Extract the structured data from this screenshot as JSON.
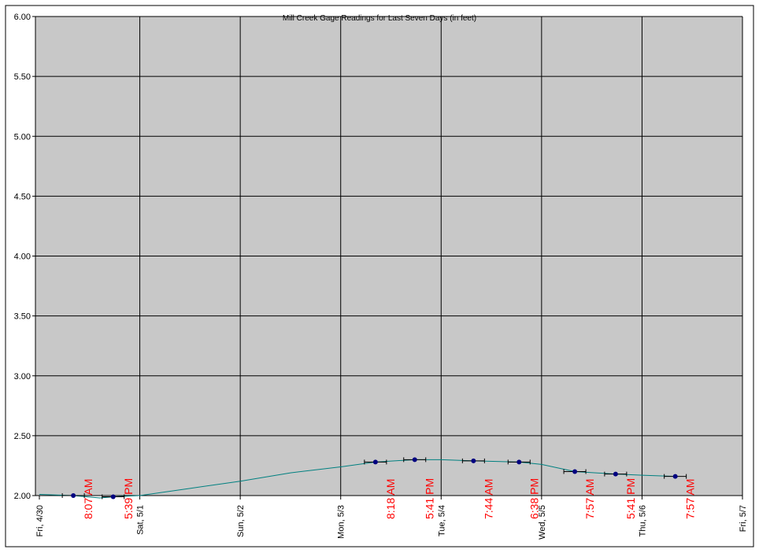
{
  "chart_data": {
    "type": "line",
    "title": "Mill Creek Gage Readings for Last Seven Days (in feet)",
    "xlim": [
      0,
      7
    ],
    "xticks": [
      {
        "value": 0,
        "label": "Fri, 4/30"
      },
      {
        "value": 1,
        "label": "Sat, 5/1"
      },
      {
        "value": 2,
        "label": "Sun, 5/2"
      },
      {
        "value": 3,
        "label": "Mon, 5/3"
      },
      {
        "value": 4,
        "label": "Tue, 5/4"
      },
      {
        "value": 5,
        "label": "Wed, 5/5"
      },
      {
        "value": 6,
        "label": "Thu, 5/6"
      },
      {
        "value": 7,
        "label": "Fri, 5/7"
      }
    ],
    "ylim": [
      2,
      6
    ],
    "yticks": [
      {
        "value": 2,
        "label": "2.00"
      },
      {
        "value": 2.5,
        "label": "2.50"
      },
      {
        "value": 3,
        "label": "3.00"
      },
      {
        "value": 3.5,
        "label": "3.50"
      },
      {
        "value": 4,
        "label": "4.00"
      },
      {
        "value": 4.5,
        "label": "4.50"
      },
      {
        "value": 5,
        "label": "5.00"
      },
      {
        "value": 5.5,
        "label": "5.50"
      },
      {
        "value": 6,
        "label": "6.00"
      }
    ],
    "grid": true,
    "series": [
      {
        "type": "line",
        "color": "#008080",
        "x": [
          0,
          0.337,
          0.6,
          0.745,
          1.0,
          1.5,
          2.0,
          2.5,
          3.0,
          3.346,
          3.737,
          4.0,
          4.322,
          4.776,
          5.0,
          5.331,
          5.737,
          6.0,
          6.331
        ],
        "values": [
          2.01,
          2.0,
          1.98,
          1.99,
          2.0,
          2.06,
          2.12,
          2.19,
          2.24,
          2.28,
          2.3,
          2.3,
          2.29,
          2.28,
          2.26,
          2.2,
          2.18,
          2.17,
          2.16
        ]
      },
      {
        "type": "scatter",
        "color": "#000080",
        "label_color": "#ff0000",
        "x": [
          0.338,
          0.735,
          3.346,
          3.737,
          4.322,
          4.776,
          5.331,
          5.737,
          6.331
        ],
        "values": [
          2.0,
          1.99,
          2.28,
          2.3,
          2.29,
          2.28,
          2.2,
          2.18,
          2.16
        ],
        "x_labels": [
          "8:07 AM",
          "5:39 PM",
          "8:18 AM",
          "5:41 PM",
          "7:44 AM",
          "6:38 PM",
          "7:57 AM",
          "5:41 PM",
          "7:57 AM"
        ]
      }
    ]
  }
}
